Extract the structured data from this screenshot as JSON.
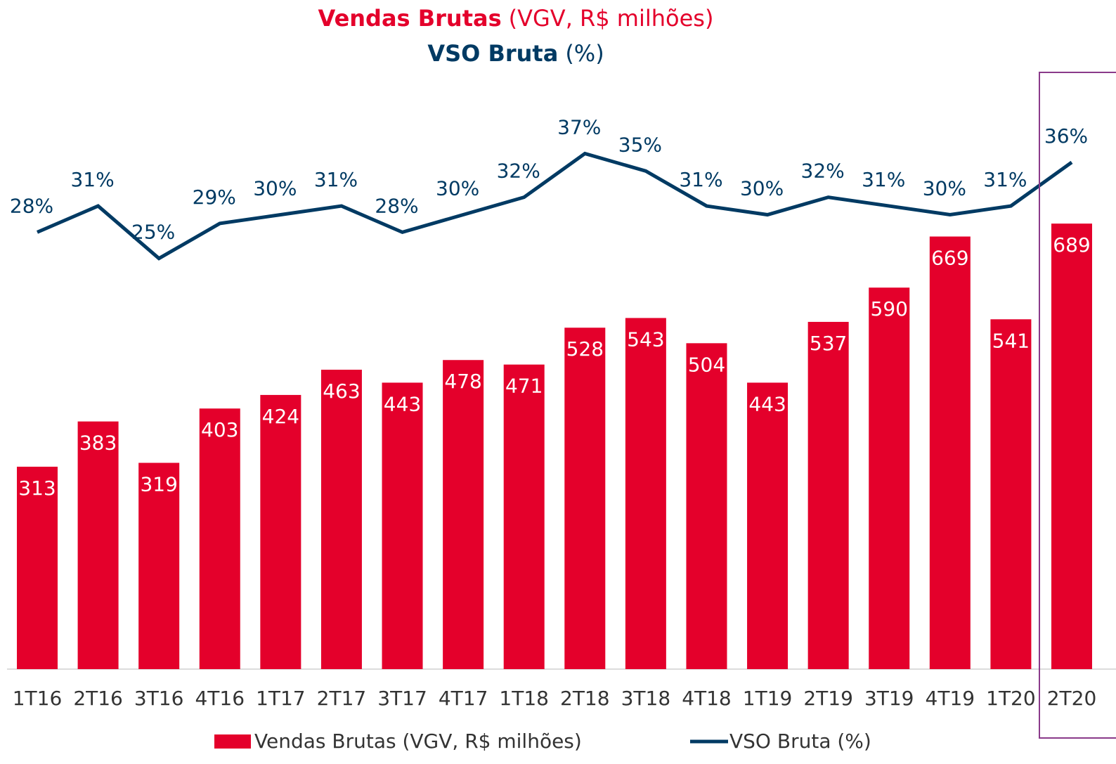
{
  "chart_data": {
    "type": "bar",
    "title_lines": [
      {
        "bold": "Vendas Brutas",
        "normal": "(VGV, R$ milhões)",
        "color": "#e4002b"
      },
      {
        "bold": "VSO Bruta",
        "normal": "(%)",
        "color": "#003a63"
      }
    ],
    "categories": [
      "1T16",
      "2T16",
      "3T16",
      "4T16",
      "1T17",
      "2T17",
      "3T17",
      "4T17",
      "1T18",
      "2T18",
      "3T18",
      "4T18",
      "1T19",
      "2T19",
      "3T19",
      "4T19",
      "1T20",
      "2T20"
    ],
    "series": [
      {
        "name": "Vendas Brutas (VGV, R$ milhões)",
        "type": "bar",
        "color": "#e4002b",
        "values": [
          313,
          383,
          319,
          403,
          424,
          463,
          443,
          478,
          471,
          528,
          543,
          504,
          443,
          537,
          590,
          669,
          541,
          689
        ]
      },
      {
        "name": "VSO Bruta (%)",
        "type": "line",
        "axis": "y2",
        "color": "#003a63",
        "values": [
          28,
          31,
          25,
          29,
          30,
          31,
          28,
          30,
          32,
          37,
          35,
          31,
          30,
          32,
          31,
          30,
          31,
          36
        ],
        "value_labels": [
          "28%",
          "31%",
          "25%",
          "29%",
          "30%",
          "31%",
          "28%",
          "30%",
          "32%",
          "37%",
          "35%",
          "31%",
          "30%",
          "32%",
          "31%",
          "30%",
          "31%",
          "36%"
        ]
      }
    ],
    "ylim": [
      0,
      1000
    ],
    "y2lim": [
      -22,
      52
    ],
    "highlight_color": "#8a3a8a"
  }
}
